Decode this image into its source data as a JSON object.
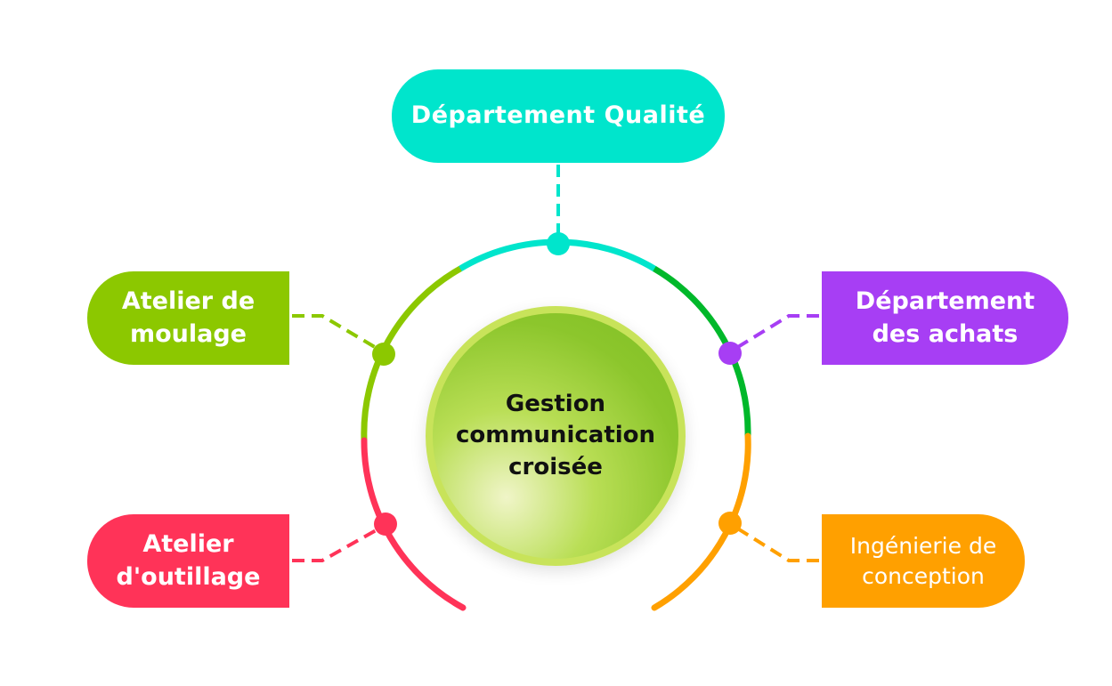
{
  "center": {
    "label": "Gestion\ncommunication\ncroisée"
  },
  "nodes": {
    "qualite": {
      "label": "Département Qualité",
      "color": "#00e5cc"
    },
    "moulage": {
      "label": "Atelier de\nmoulage",
      "color": "#8cc800"
    },
    "outillage": {
      "label": "Atelier\nd'outillage",
      "color": "#ff3358"
    },
    "achats": {
      "label": "Département\ndes achats",
      "color": "#a73ef4"
    },
    "conception": {
      "label": "Ingénierie de\nconception",
      "color": "#ffa000"
    }
  },
  "ring_colors": {
    "teal": "#00e5cc",
    "green": "#00b82a",
    "orange": "#ffa000",
    "red": "#ff3358",
    "lime": "#8cc800"
  }
}
